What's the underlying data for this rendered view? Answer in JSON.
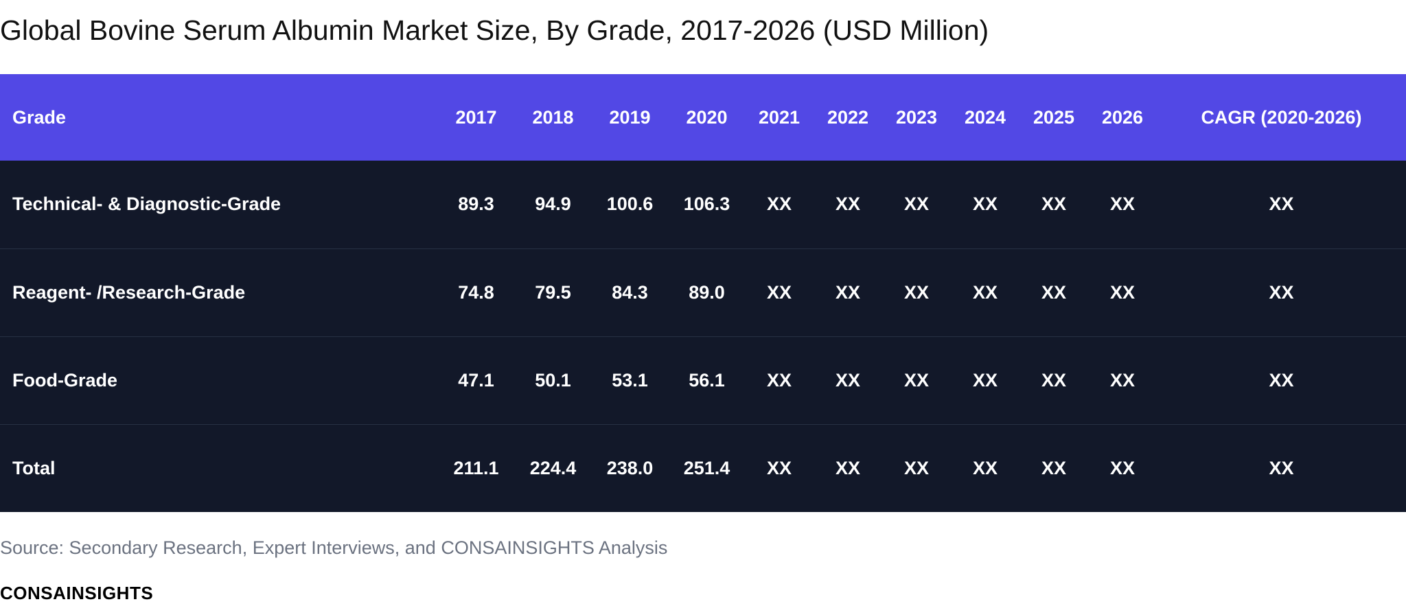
{
  "title": "Global Bovine Serum Albumin Market Size, By Grade, 2017-2026 (USD Million)",
  "table": {
    "headers": [
      "Grade",
      "2017",
      "2018",
      "2019",
      "2020",
      "2021",
      "2022",
      "2023",
      "2024",
      "2025",
      "2026",
      "CAGR (2020-2026)"
    ],
    "rows": [
      [
        "Technical- & Diagnostic-Grade",
        "89.3",
        "94.9",
        "100.6",
        "106.3",
        "XX",
        "XX",
        "XX",
        "XX",
        "XX",
        "XX",
        "XX"
      ],
      [
        "Reagent- /Research-Grade",
        "74.8",
        "79.5",
        "84.3",
        "89.0",
        "XX",
        "XX",
        "XX",
        "XX",
        "XX",
        "XX",
        "XX"
      ],
      [
        "Food-Grade",
        "47.1",
        "50.1",
        "53.1",
        "56.1",
        "XX",
        "XX",
        "XX",
        "XX",
        "XX",
        "XX",
        "XX"
      ],
      [
        "Total",
        "211.1",
        "224.4",
        "238.0",
        "251.4",
        "XX",
        "XX",
        "XX",
        "XX",
        "XX",
        "XX",
        "XX"
      ]
    ]
  },
  "colors": {
    "header_bg": "#5248e5",
    "row_bg": "#121829",
    "row_border": "#273044",
    "source_text": "#6b7280"
  },
  "source": "Source: Secondary Research, Expert Interviews, and CONSAINSIGHTS Analysis",
  "logo_text": "CONSAINSIGHTS"
}
